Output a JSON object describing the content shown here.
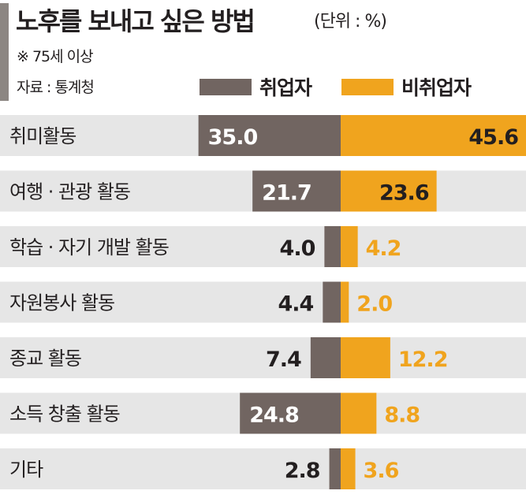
{
  "header": {
    "title": "노후를 보내고 싶은 방법",
    "unit": "(단위 : %)",
    "note": "※ 75세 이상",
    "source": "자료 : 통계청"
  },
  "colors": {
    "employed": "#716561",
    "unemployed": "#f0a41e",
    "row_bg": "#e6e6e6",
    "text_dark": "#231f20",
    "text_light": "#ffffff"
  },
  "chart_data": {
    "type": "bar",
    "categories": [
      "취미활동",
      "여행 · 관광 활동",
      "학습 · 자기 개발 활동",
      "자원봉사 활동",
      "종교 활동",
      "소득 창출 활동",
      "기타"
    ],
    "series": [
      {
        "name": "취업자",
        "values": [
          35.0,
          21.7,
          4.0,
          4.4,
          7.4,
          24.8,
          2.8
        ]
      },
      {
        "name": "비취업자",
        "values": [
          45.6,
          23.6,
          4.2,
          2.0,
          12.2,
          8.8,
          3.6
        ]
      }
    ],
    "title": "노후를 보내고 싶은 방법",
    "unit": "%",
    "legend_position": "top-right",
    "grid": false
  }
}
